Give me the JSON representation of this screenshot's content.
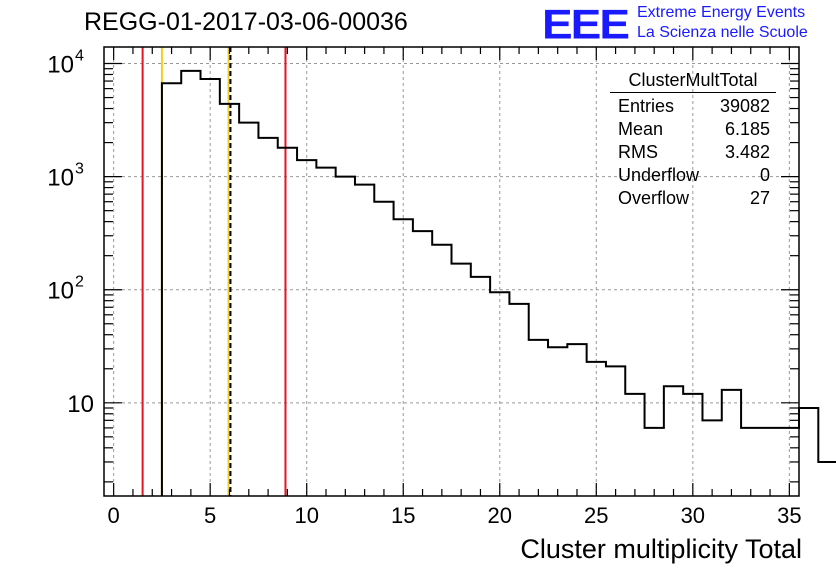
{
  "chart_data": {
    "type": "histogram",
    "title": "REGG-01-2017-03-06-00036",
    "xlabel": "Cluster multiplicity Total",
    "ylabel": "",
    "xlim": [
      -0.5,
      35.5
    ],
    "ylim": [
      1.5,
      14000
    ],
    "yscale": "log",
    "grid": true,
    "bin_width": 1,
    "bin_edges_start": 2.5,
    "counts": [
      6700,
      8600,
      7300,
      4400,
      3000,
      2200,
      1800,
      1400,
      1200,
      1000,
      850,
      600,
      420,
      330,
      250,
      170,
      130,
      95,
      75,
      36,
      31,
      33,
      23,
      21,
      12,
      6,
      14,
      12,
      7,
      13,
      6,
      6,
      6,
      9,
      3
    ],
    "x_ticks": [
      "0",
      "5",
      "10",
      "15",
      "20",
      "25",
      "30",
      "35"
    ],
    "y_ticks": [
      {
        "value": 10,
        "base": "10",
        "exp": ""
      },
      {
        "value": 100,
        "base": "10",
        "exp": "2"
      },
      {
        "value": 1000,
        "base": "10",
        "exp": "3"
      },
      {
        "value": 10000,
        "base": "10",
        "exp": "4"
      }
    ],
    "vertical_lines": [
      {
        "x": 1.5,
        "color": "#e8141e",
        "style": "solid"
      },
      {
        "x": 2.5,
        "color": "#f0d020",
        "style": "solid"
      },
      {
        "x": 5.95,
        "color": "#f0d020",
        "style": "solid"
      },
      {
        "x": 6.05,
        "color": "#000000",
        "style": "dashed"
      },
      {
        "x": 8.9,
        "color": "#e8141e",
        "style": "solid"
      }
    ],
    "stats_box": {
      "name": "ClusterMultTotal",
      "rows": [
        {
          "label": "Entries",
          "value": "39082"
        },
        {
          "label": "Mean",
          "value": "6.185"
        },
        {
          "label": "RMS",
          "value": "3.482"
        },
        {
          "label": "Underflow",
          "value": "0"
        },
        {
          "label": "Overflow",
          "value": "27"
        }
      ]
    }
  },
  "logo": {
    "mark": "EEE",
    "line1": "Extreme Energy Events",
    "line2": "La Scienza nelle Scuole",
    "color": "#1a1aff"
  }
}
